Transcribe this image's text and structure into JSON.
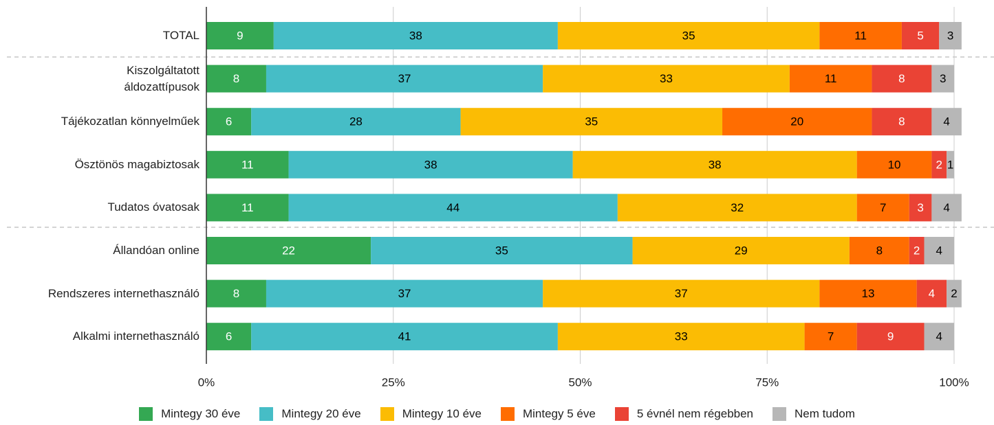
{
  "chart_data": {
    "type": "stacked_bar_horizontal",
    "categories": [
      "TOTAL",
      "Kiszolgáltatott\náldozattípusok",
      "Tájékozatlan könnyelműek",
      "Ösztönös magabiztosak",
      "Tudatos óvatosak",
      "Állandóan online",
      "Rendszeres internethasználó",
      "Alkalmi internethasználó"
    ],
    "series": [
      {
        "name": "Mintegy 30 éve",
        "color": "#34a853",
        "label_color": "#ffffff",
        "values": [
          9,
          8,
          6,
          11,
          11,
          22,
          8,
          6
        ]
      },
      {
        "name": "Mintegy 20 éve",
        "color": "#46bdc6",
        "label_color": "#000000",
        "values": [
          38,
          37,
          28,
          38,
          44,
          35,
          37,
          41
        ]
      },
      {
        "name": "Mintegy 10 éve",
        "color": "#fbbc04",
        "label_color": "#000000",
        "values": [
          35,
          33,
          35,
          38,
          32,
          29,
          37,
          33
        ]
      },
      {
        "name": "Mintegy 5 éve",
        "color": "#ff6d01",
        "label_color": "#000000",
        "values": [
          11,
          11,
          20,
          10,
          7,
          8,
          13,
          7
        ]
      },
      {
        "name": "5 évnél nem régebben",
        "color": "#ea4335",
        "label_color": "#ffffff",
        "values": [
          5,
          8,
          8,
          2,
          3,
          2,
          4,
          9
        ]
      },
      {
        "name": "Nem tudom",
        "color": "#b7b7b7",
        "label_color": "#000000",
        "values": [
          3,
          3,
          4,
          1,
          4,
          4,
          2,
          4
        ]
      }
    ],
    "xlim": [
      0,
      100
    ],
    "xticks": [
      {
        "value": 0,
        "label": "0%"
      },
      {
        "value": 25,
        "label": "25%"
      },
      {
        "value": 50,
        "label": "50%"
      },
      {
        "value": 75,
        "label": "75%"
      },
      {
        "value": 100,
        "label": "100%"
      }
    ],
    "grid": true,
    "legend": "bottom"
  }
}
